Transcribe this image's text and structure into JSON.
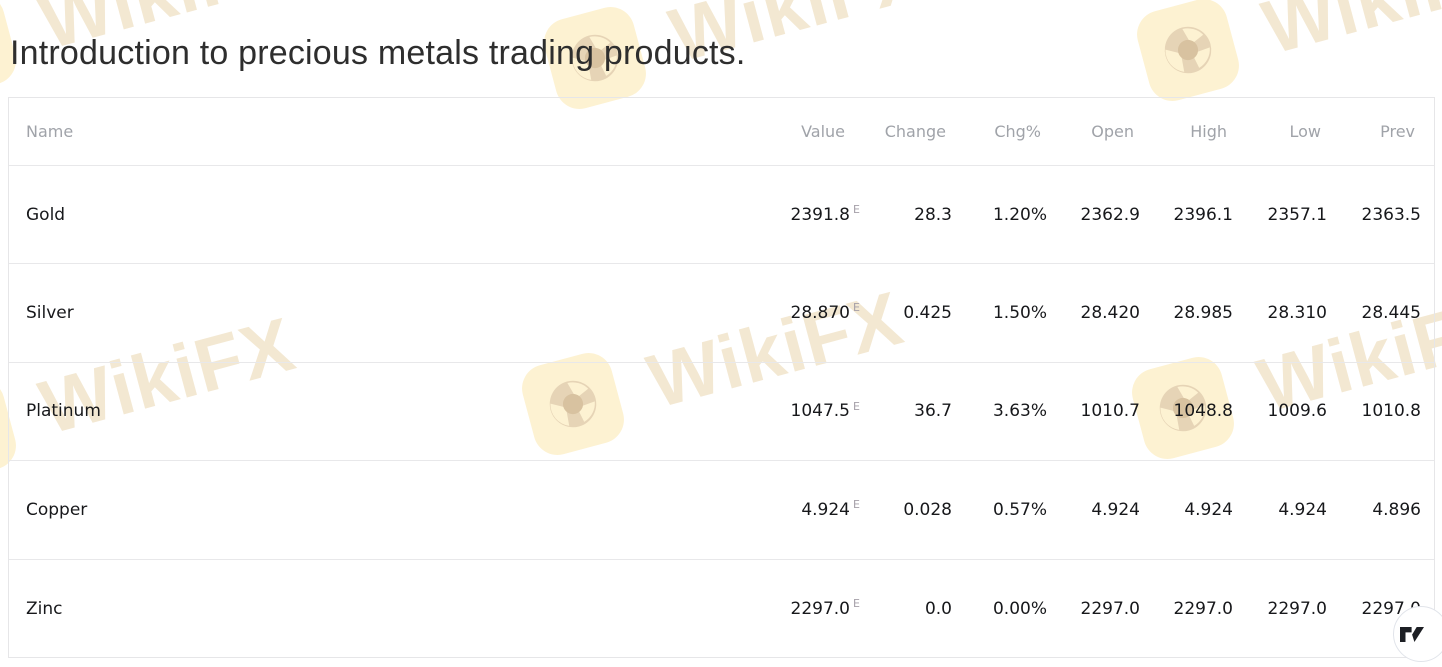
{
  "title": "Introduction to precious metals trading products.",
  "watermark": {
    "text": "WikiFX",
    "logo": "wikifx-lion-logo"
  },
  "attribution": {
    "icon": "tradingview-logo"
  },
  "colors": {
    "positive": "#2e9c8d",
    "text_dark": "#17181b",
    "header_gray": "#a0a3a9",
    "estimate_flag": "#a59fa8",
    "watermark_yellow": "#fdf2d2",
    "watermark_beige": "#f3e8d2"
  },
  "table": {
    "columns": [
      "Name",
      "Value",
      "Change",
      "Chg%",
      "Open",
      "High",
      "Low",
      "Prev"
    ],
    "estimate_flag": "E",
    "rows": [
      {
        "name": "Gold",
        "value": "2391.8",
        "flag": "E",
        "change": "28.3",
        "chg_pct": "1.20%",
        "open": "2362.9",
        "high": "2396.1",
        "low": "2357.1",
        "prev": "2363.5",
        "positive": true
      },
      {
        "name": "Silver",
        "value": "28.870",
        "flag": "E",
        "change": "0.425",
        "chg_pct": "1.50%",
        "open": "28.420",
        "high": "28.985",
        "low": "28.310",
        "prev": "28.445",
        "positive": true
      },
      {
        "name": "Platinum",
        "value": "1047.5",
        "flag": "E",
        "change": "36.7",
        "chg_pct": "3.63%",
        "open": "1010.7",
        "high": "1048.8",
        "low": "1009.6",
        "prev": "1010.8",
        "positive": true
      },
      {
        "name": "Copper",
        "value": "4.924",
        "flag": "E",
        "change": "0.028",
        "chg_pct": "0.57%",
        "open": "4.924",
        "high": "4.924",
        "low": "4.924",
        "prev": "4.896",
        "positive": true
      },
      {
        "name": "Zinc",
        "value": "2297.0",
        "flag": "E",
        "change": "0.0",
        "chg_pct": "0.00%",
        "open": "2297.0",
        "high": "2297.0",
        "low": "2297.0",
        "prev": "2297.0",
        "positive": false
      }
    ]
  }
}
